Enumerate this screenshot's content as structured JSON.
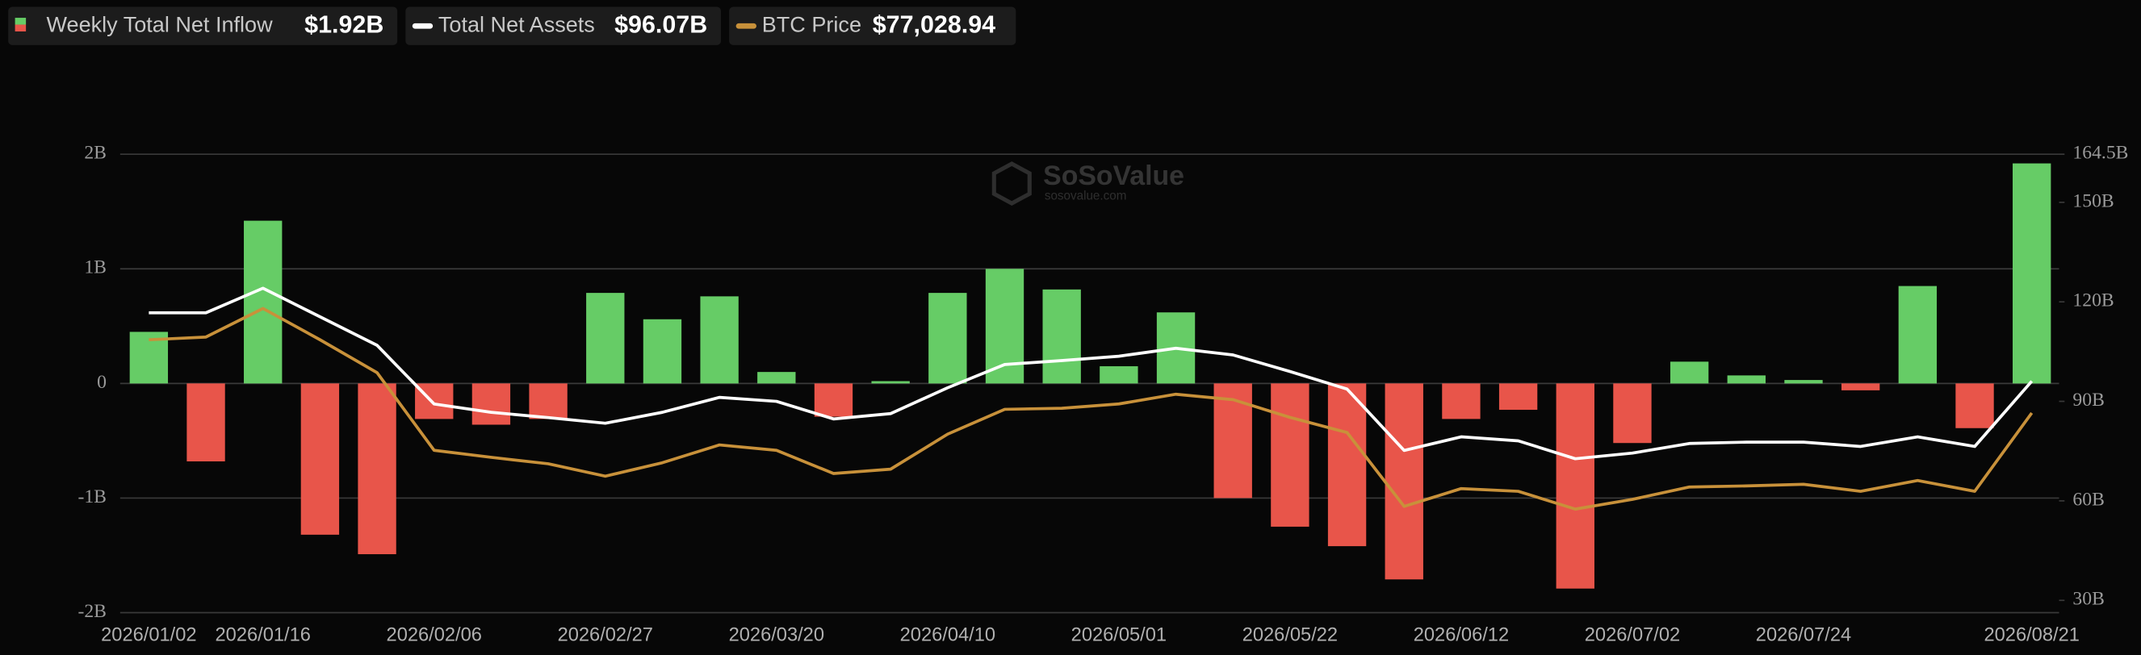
{
  "chart_data": {
    "type": "bar",
    "watermark": "SoSoValue",
    "watermark_url": "sosovalue.com",
    "categories": [
      "2026/01/02",
      null,
      "2026/01/16",
      null,
      null,
      "2026/02/06",
      null,
      null,
      "2026/02/27",
      null,
      null,
      "2026/03/20",
      null,
      null,
      "2026/04/10",
      null,
      null,
      "2026/05/01",
      null,
      null,
      "2026/05/22",
      null,
      null,
      "2026/06/12",
      null,
      null,
      "2026/07/02",
      null,
      null,
      "2026/07/24",
      null,
      null,
      null,
      "2026/08/21"
    ],
    "ylim": [
      -2,
      2
    ],
    "yticks": [
      {
        "value": 2,
        "label": "2B"
      },
      {
        "value": 1,
        "label": "1B"
      },
      0,
      {
        "value": -1,
        "label": "-1B"
      },
      {
        "value": -2,
        "label": "-2B"
      }
    ],
    "y2lim": [
      26.3,
      164.5
    ],
    "y2ticks": [
      {
        "value": 164.5,
        "label": "164.5B"
      },
      {
        "value": 150,
        "label": "150B"
      },
      {
        "value": 120,
        "label": "120B"
      },
      {
        "value": 90,
        "label": "90B"
      },
      {
        "value": 60,
        "label": "60B"
      },
      {
        "value": 30,
        "label": "30B"
      }
    ],
    "y3lim": [
      40000,
      125000
    ],
    "grid": true,
    "series": [
      {
        "name": "Weekly Total Net Inflow",
        "legend_value": "$1.92B",
        "type": "bar",
        "axis": "y",
        "color": "#66cc66",
        "negative_color": "#e8554a",
        "values": [
          0.45,
          -0.68,
          1.42,
          -1.32,
          -1.49,
          -0.31,
          -0.36,
          -0.31,
          0.79,
          0.56,
          0.76,
          0.1,
          -0.29,
          0.02,
          0.79,
          1.0,
          0.82,
          0.15,
          0.62,
          -1.0,
          -1.25,
          -1.42,
          -1.71,
          -0.31,
          -0.23,
          -1.79,
          -0.52,
          0.19,
          0.07,
          0.03,
          -0.06,
          0.85,
          -0.39,
          1.92
        ]
      },
      {
        "name": "Total Net Assets",
        "legend_value": "$96.07B",
        "type": "line",
        "axis": "y2",
        "color": "#ffffff",
        "values": [
          116.7,
          116.7,
          124.1,
          115.5,
          106.9,
          89.2,
          86.7,
          85.1,
          83.4,
          86.7,
          91.2,
          90.0,
          84.7,
          86.3,
          94.1,
          101.1,
          102.3,
          103.6,
          106.0,
          104.0,
          99.0,
          93.7,
          75.2,
          79.3,
          78.1,
          72.7,
          74.4,
          77.3,
          77.7,
          77.7,
          76.4,
          79.3,
          76.4,
          96.07
        ]
      },
      {
        "name": "BTC Price",
        "legend_value": "$77,028.94",
        "type": "line",
        "axis": "y3",
        "color": "#c8913a",
        "values": [
          90600,
          91100,
          96400,
          90600,
          84500,
          70100,
          68800,
          67600,
          65300,
          67800,
          71100,
          70100,
          65800,
          66600,
          73100,
          77700,
          77900,
          78700,
          80500,
          79500,
          76200,
          73400,
          59700,
          63000,
          62500,
          59200,
          61000,
          63300,
          63500,
          63800,
          62500,
          64500,
          62500,
          77028.94
        ]
      }
    ]
  }
}
